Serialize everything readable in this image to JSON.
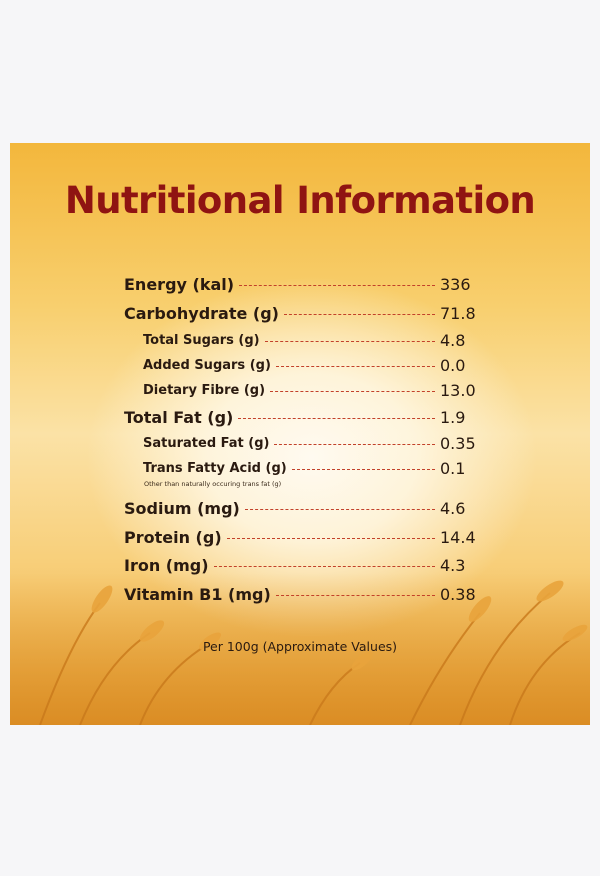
{
  "title": "Nutritional Information",
  "rows": [
    {
      "label": "Energy (kal)",
      "value": "336"
    },
    {
      "label": "Carbohydrate (g)",
      "value": "71.8"
    },
    {
      "label": "Total Sugars (g)",
      "value": "4.8"
    },
    {
      "label": "Added Sugars (g)",
      "value": "0.0"
    },
    {
      "label": "Dietary Fibre (g)",
      "value": "13.0"
    },
    {
      "label": "Total Fat (g)",
      "value": "1.9"
    },
    {
      "label": "Saturated Fat (g)",
      "value": "0.35"
    },
    {
      "label": "Trans Fatty Acid (g)",
      "value": "0.1"
    },
    {
      "label": "Sodium (mg)",
      "value": "4.6"
    },
    {
      "label": "Protein (g)",
      "value": "14.4"
    },
    {
      "label": "Iron (mg)",
      "value": "4.3"
    },
    {
      "label": "Vitamin B1 (mg)",
      "value": "0.38"
    }
  ],
  "trans_fat_note": "Other than naturally occuring trans fat (g)",
  "footer": "Per 100g (Approximate Values)",
  "colors": {
    "title": "#8f1412",
    "dotted_leader": "#c2412a",
    "text": "#2a1a10"
  }
}
